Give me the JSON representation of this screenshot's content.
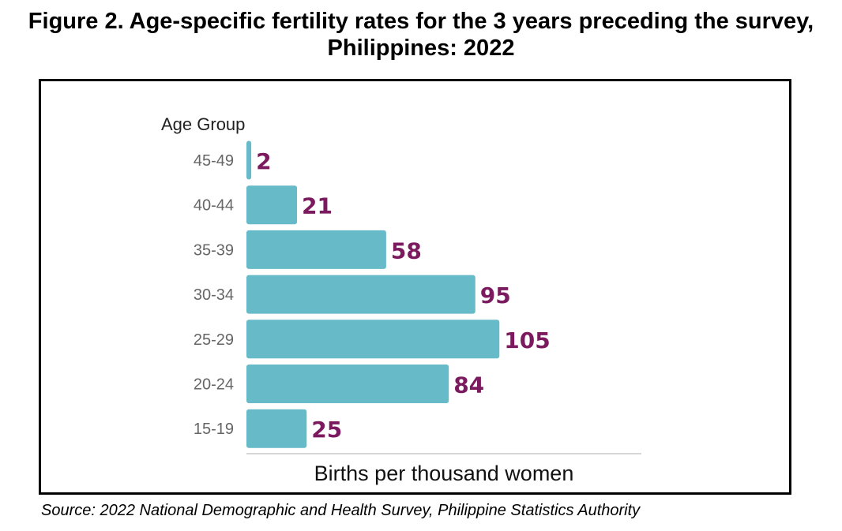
{
  "figure": {
    "title_line1": "Figure 2. Age-specific fertility rates for the 3 years preceding the survey,",
    "title_line2": "Philippines: 2022",
    "source": "Source: 2022 National Demographic and Health Survey, Philippine Statistics Authority"
  },
  "chart_data": {
    "type": "bar",
    "orientation": "horizontal",
    "title": "Age-specific fertility rates for the 3 years preceding the survey, Philippines: 2022",
    "ylabel": "Age Group",
    "xlabel": "Births per thousand women",
    "categories": [
      "45-49",
      "40-44",
      "35-39",
      "30-34",
      "25-29",
      "20-24",
      "15-19"
    ],
    "values": [
      2,
      21,
      58,
      95,
      105,
      84,
      25
    ],
    "xlim": [
      0,
      105
    ],
    "grid": false,
    "colors": {
      "bar": "#67BAC8",
      "value_label": "#7B1A5E",
      "category_label": "#666666",
      "axis_line": "#C8C8C8"
    }
  }
}
